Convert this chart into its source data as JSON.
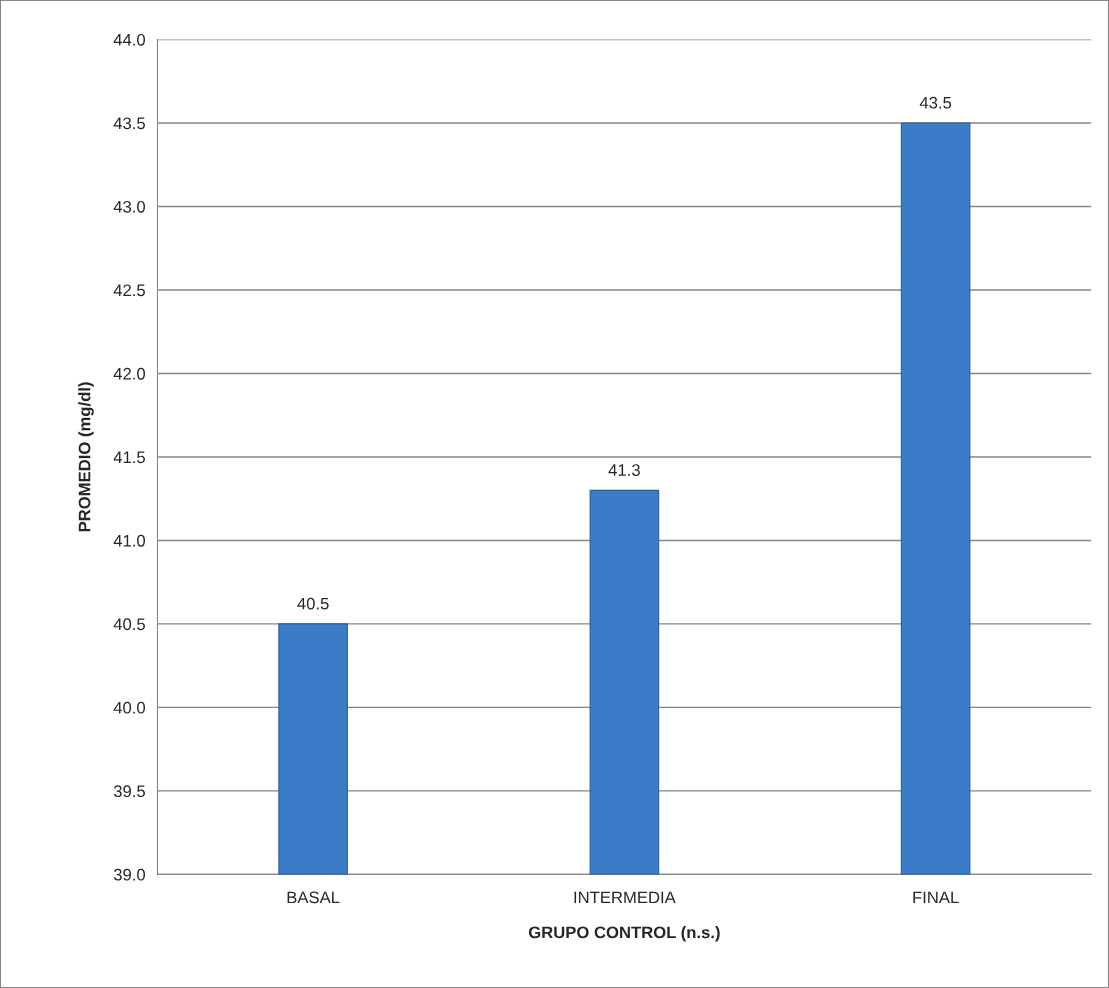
{
  "chart_data": {
    "type": "bar",
    "xlabel": "GRUPO CONTROL (n.s.)",
    "ylabel": "PROMEDIO (mg/dl)",
    "categories": [
      "BASAL",
      "INTERMEDIA",
      "FINAL"
    ],
    "values": [
      40.5,
      41.3,
      43.5
    ],
    "color": "#3b7cc9",
    "ylim": [
      39.0,
      44.0
    ],
    "yticks": [
      {
        "value": 39.0,
        "label": "39.0"
      },
      {
        "value": 39.5,
        "label": "39.5"
      },
      {
        "value": 40.0,
        "label": "40.0"
      },
      {
        "value": 40.5,
        "label": "40.5"
      },
      {
        "value": 41.0,
        "label": "41.0"
      },
      {
        "value": 41.5,
        "label": "41.5"
      },
      {
        "value": 42.0,
        "label": "42.0"
      },
      {
        "value": 42.5,
        "label": "42.5"
      },
      {
        "value": 43.0,
        "label": "43.0"
      },
      {
        "value": 43.5,
        "label": "43.5"
      },
      {
        "value": 44.0,
        "label": "44.0"
      }
    ],
    "grid": "y",
    "data_labels": true,
    "legend": false
  }
}
